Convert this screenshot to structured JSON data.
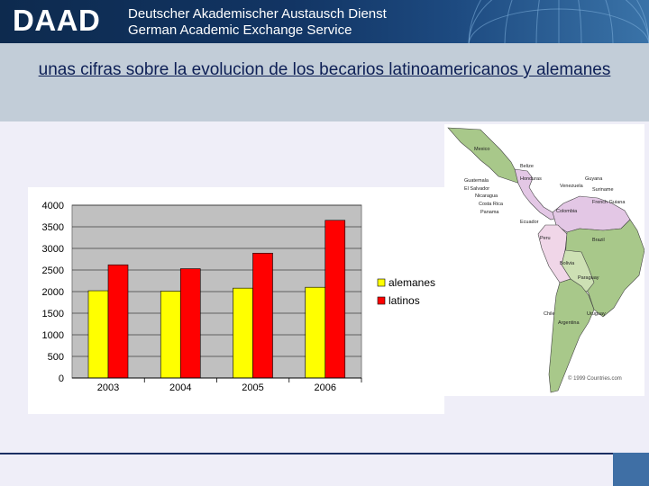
{
  "header": {
    "logo": "DAAD",
    "line1": "Deutscher Akademischer Austausch Dienst",
    "line2": "German Academic Exchange Service"
  },
  "title": "unas cifras sobre la evolucion de los becarios latinoamericanos y alemanes",
  "chart_data": {
    "type": "bar",
    "categories": [
      "2003",
      "2004",
      "2005",
      "2006"
    ],
    "series": [
      {
        "name": "alemanes",
        "values": [
          2020,
          2010,
          2080,
          2100
        ],
        "color": "#ffff00"
      },
      {
        "name": "latinos",
        "values": [
          2620,
          2530,
          2890,
          3650
        ],
        "color": "#ff0000"
      }
    ],
    "ylim": [
      0,
      4000
    ],
    "yticks": [
      "0",
      "500",
      "1000",
      "1500",
      "2000",
      "2500",
      "3000",
      "3500",
      "4000"
    ],
    "grid": true,
    "plot_background": "#c0c0c0",
    "legend_position": "right"
  },
  "map": {
    "labels": [
      "Mexico",
      "Belize",
      "Guatemala",
      "Honduras",
      "El Salvador",
      "Nicaragua",
      "Costa Rica",
      "Panama",
      "Venezuela",
      "Guyana",
      "Suriname",
      "French Guiana",
      "Colombia",
      "Ecuador",
      "Peru",
      "Brazil",
      "Bolivia",
      "Paraguay",
      "Chile",
      "Uruguay",
      "Argentina"
    ],
    "copyright": "© 1999 Countries.com",
    "land_color": "#a8c88a",
    "highlight_color": "#e3c7e5"
  }
}
